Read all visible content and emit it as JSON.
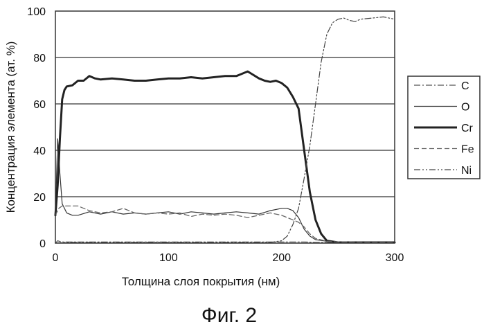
{
  "figure": {
    "caption": "Фиг. 2"
  },
  "chart_data": {
    "type": "line",
    "title": "",
    "xlabel": "Толщина слоя покрытия (нм)",
    "ylabel": "Концентрация элемента (ат. %)",
    "xlim": [
      0,
      300
    ],
    "ylim": [
      0,
      100
    ],
    "x_ticks": [
      "0",
      "100",
      "200",
      "300"
    ],
    "y_ticks": [
      "0",
      "20",
      "40",
      "60",
      "80",
      "100"
    ],
    "grid": "horizontal",
    "legend_position": "right",
    "series": [
      {
        "name": "C",
        "color": "#555555",
        "style": "dash-dot",
        "width": 1.2,
        "x": [
          0,
          2,
          5,
          10,
          20,
          40,
          60,
          80,
          100,
          120,
          140,
          160,
          180,
          200,
          210,
          220,
          230,
          240,
          250,
          300
        ],
        "y": [
          0,
          1,
          0.5,
          0.5,
          0.5,
          0.5,
          0.5,
          0.5,
          0.5,
          0.5,
          0.5,
          0.5,
          0.5,
          0.5,
          0.5,
          0.5,
          0.3,
          0.3,
          0.3,
          0.3
        ]
      },
      {
        "name": "O",
        "color": "#333333",
        "style": "solid",
        "width": 1.2,
        "x": [
          0,
          2,
          4,
          6,
          10,
          15,
          20,
          30,
          40,
          50,
          60,
          70,
          80,
          90,
          100,
          110,
          120,
          130,
          140,
          150,
          160,
          170,
          180,
          190,
          200,
          205,
          210,
          215,
          220,
          225,
          230,
          240,
          250,
          260,
          280,
          300
        ],
        "y": [
          12,
          45,
          30,
          17,
          13,
          12,
          12,
          13.5,
          12.5,
          13.5,
          12.5,
          13,
          12.5,
          13,
          13.5,
          12.5,
          13.5,
          13,
          12.5,
          13,
          13.5,
          13,
          12.5,
          14,
          15,
          15,
          14,
          11,
          6,
          3,
          1.5,
          0.8,
          0.5,
          0.5,
          0.3,
          0.3
        ]
      },
      {
        "name": "Cr",
        "color": "#222222",
        "style": "solid",
        "width": 3,
        "x": [
          0,
          2,
          4,
          6,
          8,
          10,
          15,
          20,
          25,
          30,
          35,
          40,
          50,
          60,
          70,
          80,
          90,
          100,
          110,
          120,
          130,
          140,
          150,
          160,
          165,
          170,
          180,
          185,
          190,
          195,
          200,
          205,
          210,
          215,
          220,
          225,
          230,
          235,
          240,
          250,
          300
        ],
        "y": [
          12,
          25,
          45,
          62,
          66,
          67.5,
          68,
          70,
          70,
          72,
          71,
          70.5,
          71,
          70.5,
          70,
          70,
          70.5,
          71,
          71,
          71.5,
          71,
          71.5,
          72,
          72,
          73,
          74,
          71,
          70,
          69.5,
          70,
          69,
          67,
          63,
          58,
          40,
          22,
          10,
          4,
          1,
          0.3,
          0.3
        ]
      },
      {
        "name": "Fe",
        "color": "#666666",
        "style": "dashed",
        "width": 1.3,
        "x": [
          0,
          3,
          6,
          10,
          20,
          30,
          40,
          50,
          60,
          70,
          80,
          90,
          100,
          110,
          120,
          130,
          140,
          150,
          160,
          170,
          180,
          190,
          200,
          210,
          215,
          220,
          225,
          230,
          240,
          250,
          300
        ],
        "y": [
          12,
          15,
          16,
          16,
          16,
          14,
          13,
          13.5,
          15,
          13,
          12.5,
          13,
          12.5,
          13,
          11.5,
          12.5,
          12,
          12.5,
          12,
          11,
          12,
          13,
          12,
          10,
          9,
          7,
          4,
          2,
          0.8,
          0.5,
          0.3
        ]
      },
      {
        "name": "Ni",
        "color": "#444444",
        "style": "dash-dot-dot",
        "width": 1.2,
        "x": [
          0,
          10,
          50,
          100,
          150,
          190,
          200,
          205,
          210,
          215,
          220,
          225,
          230,
          235,
          240,
          245,
          250,
          255,
          260,
          265,
          270,
          280,
          290,
          300
        ],
        "y": [
          0,
          0.3,
          0.3,
          0.3,
          0.3,
          0.3,
          1,
          3,
          8,
          15,
          28,
          42,
          60,
          78,
          90,
          95,
          96.5,
          97,
          96,
          95.5,
          96.5,
          97,
          97.5,
          96.5
        ]
      }
    ]
  }
}
